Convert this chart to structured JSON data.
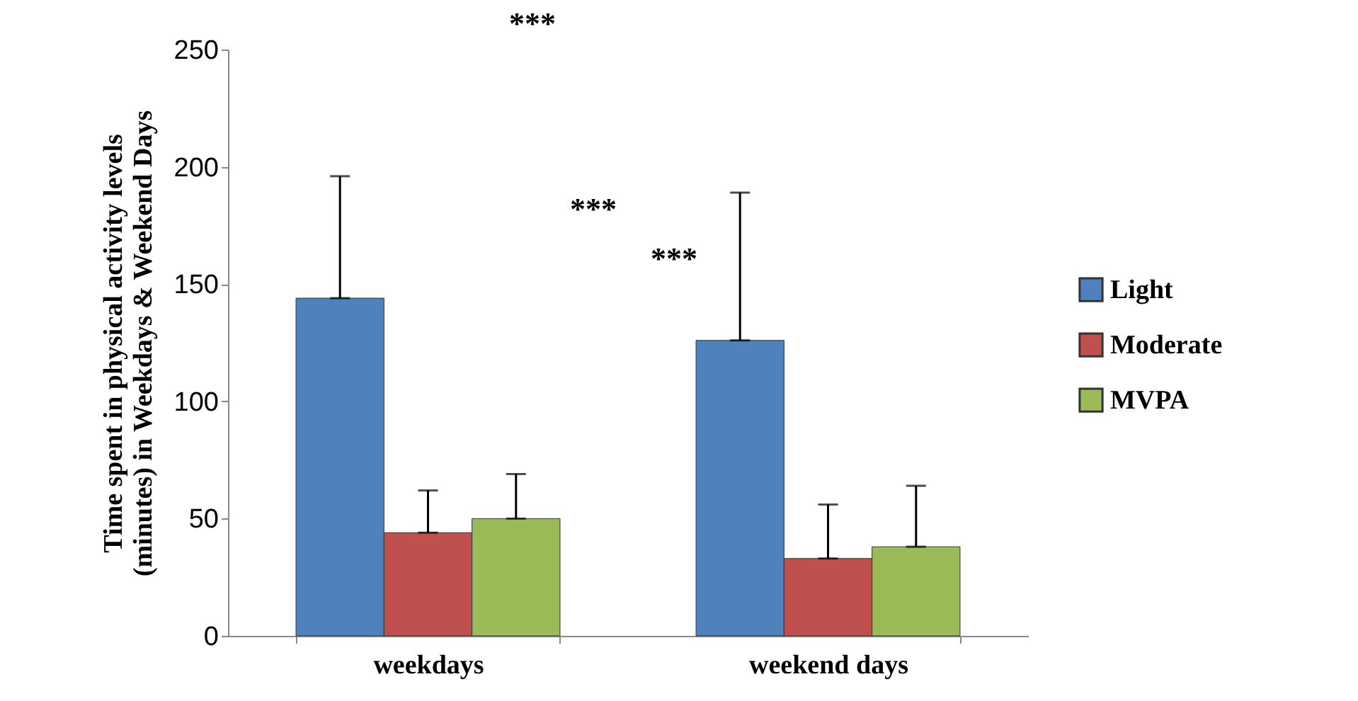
{
  "chart_data": {
    "type": "bar",
    "ylabel": "Time spent in physical activity levels (minutes) in  Weekdays & Weekend Days",
    "categories": [
      "weekdays",
      "weekend days"
    ],
    "series": [
      {
        "name": "Light",
        "color": "#4f81bd",
        "values": [
          144,
          126
        ],
        "errors": [
          [
            144,
            196
          ],
          [
            126,
            189
          ]
        ]
      },
      {
        "name": "Moderate",
        "color": "#c0504d",
        "values": [
          44,
          33
        ],
        "errors": [
          [
            44,
            62
          ],
          [
            33,
            56
          ]
        ]
      },
      {
        "name": "MVPA",
        "color": "#9bbb59",
        "values": [
          50,
          38
        ],
        "errors": [
          [
            50,
            69
          ],
          [
            38,
            64
          ]
        ]
      }
    ],
    "ylim": [
      0,
      250
    ],
    "yticks": [
      0,
      50,
      100,
      150,
      200,
      250
    ],
    "annotations": [
      "***",
      "***",
      "***"
    ],
    "grid": false,
    "legend": "right"
  }
}
